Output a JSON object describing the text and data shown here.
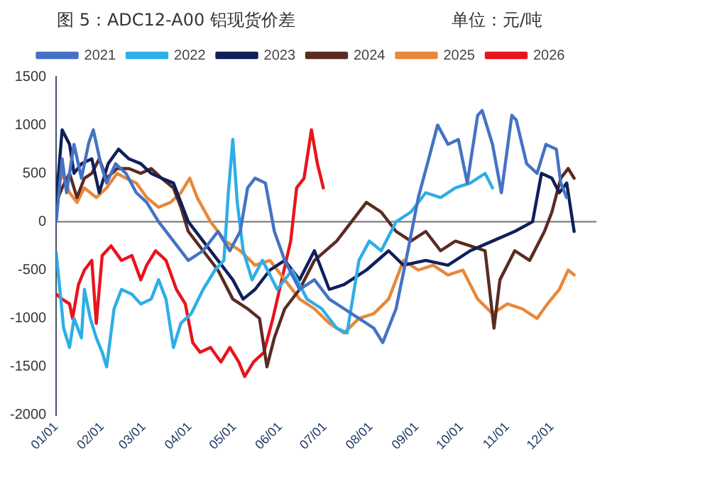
{
  "chart_data": {
    "type": "line",
    "title": "图 5：ADC12-A00 铝现货价差",
    "ylabel": "单位：元/吨",
    "legend": "top",
    "xlim": [
      "--01-01",
      "--12-31"
    ],
    "xticks": [
      {
        "value": "--01-01",
        "label": "01/01"
      },
      {
        "value": "--02-01",
        "label": "02/01"
      },
      {
        "value": "--03-01",
        "label": "03/01"
      },
      {
        "value": "--04-01",
        "label": "04/01"
      },
      {
        "value": "--05-01",
        "label": "05/01"
      },
      {
        "value": "--06-01",
        "label": "06/01"
      },
      {
        "value": "--07-01",
        "label": "07/01"
      },
      {
        "value": "--08-01",
        "label": "08/01"
      },
      {
        "value": "--09-01",
        "label": "09/01"
      },
      {
        "value": "--10-01",
        "label": "10/01"
      },
      {
        "value": "--11-01",
        "label": "11/01"
      },
      {
        "value": "--12-01",
        "label": "12/01"
      }
    ],
    "ylim": [
      -2000,
      1500
    ],
    "yticks": [
      -2000,
      -1500,
      -1000,
      -500,
      0,
      500,
      1000,
      1500
    ],
    "ref_lines": [
      {
        "axis": "y",
        "value": 0,
        "color": "#7f7f7f"
      }
    ],
    "series": [
      {
        "name": "2021",
        "color": "#4472c4",
        "x": [
          "--01-01",
          "--01-05",
          "--01-08",
          "--01-13",
          "--01-18",
          "--01-23",
          "--01-26",
          "--01-31",
          "--02-04",
          "--02-10",
          "--02-17",
          "--02-24",
          "--03-03",
          "--03-11",
          "--03-21",
          "--03-31",
          "--04-10",
          "--04-20",
          "--04-28",
          "--05-05",
          "--05-10",
          "--05-15",
          "--05-22",
          "--05-28",
          "--06-04",
          "--06-14",
          "--06-24",
          "--07-04",
          "--07-14",
          "--07-24",
          "--08-03",
          "--08-09",
          "--08-18",
          "--08-26",
          "--09-02",
          "--09-09",
          "--09-15",
          "--09-22",
          "--09-29",
          "--10-05",
          "--10-12",
          "--10-15",
          "--10-22",
          "--10-28",
          "--11-04",
          "--11-07",
          "--11-14",
          "--11-21",
          "--11-27",
          "--12-04",
          "--12-07",
          "--12-11"
        ],
        "values": [
          0,
          650,
          300,
          800,
          450,
          820,
          950,
          600,
          400,
          600,
          500,
          300,
          200,
          0,
          -200,
          -400,
          -300,
          -100,
          -300,
          -100,
          350,
          450,
          400,
          -100,
          -400,
          -700,
          -600,
          -800,
          -900,
          -1000,
          -1100,
          -1250,
          -900,
          -300,
          250,
          650,
          1000,
          800,
          850,
          400,
          1100,
          1150,
          800,
          300,
          1100,
          1050,
          600,
          500,
          800,
          750,
          400,
          250
        ]
      },
      {
        "name": "2022",
        "color": "#2eaee6",
        "x": [
          "--01-01",
          "--01-06",
          "--01-10",
          "--01-13",
          "--01-18",
          "--01-20",
          "--01-24",
          "--01-28",
          "--02-01",
          "--02-04",
          "--02-09",
          "--02-14",
          "--02-21",
          "--02-27",
          "--03-06",
          "--03-11",
          "--03-16",
          "--03-21",
          "--03-26",
          "--04-02",
          "--04-10",
          "--04-18",
          "--04-24",
          "--04-27",
          "--04-30",
          "--05-03",
          "--05-07",
          "--05-13",
          "--05-20",
          "--05-30",
          "--06-09",
          "--06-19",
          "--06-29",
          "--07-09",
          "--07-16",
          "--07-24",
          "--07-31",
          "--08-08",
          "--08-18",
          "--08-28",
          "--09-07",
          "--09-17",
          "--09-27",
          "--10-07",
          "--10-17",
          "--10-22"
        ],
        "values": [
          -320,
          -1100,
          -1300,
          -1000,
          -1200,
          -700,
          -1000,
          -1200,
          -1350,
          -1500,
          -900,
          -700,
          -750,
          -850,
          -800,
          -600,
          -800,
          -1300,
          -1050,
          -950,
          -700,
          -500,
          -400,
          300,
          850,
          200,
          -300,
          -600,
          -400,
          -700,
          -500,
          -800,
          -900,
          -1100,
          -1150,
          -400,
          -200,
          -300,
          0,
          100,
          300,
          250,
          350,
          400,
          500,
          350
        ]
      },
      {
        "name": "2023",
        "color": "#0f1f5a",
        "x": [
          "--01-01",
          "--01-05",
          "--01-10",
          "--01-13",
          "--01-18",
          "--01-25",
          "--01-30",
          "--02-05",
          "--02-12",
          "--02-19",
          "--02-27",
          "--03-06",
          "--03-13",
          "--03-21",
          "--03-26",
          "--03-31",
          "--04-10",
          "--04-20",
          "--04-30",
          "--05-07",
          "--05-15",
          "--05-25",
          "--06-04",
          "--06-14",
          "--06-24",
          "--07-04",
          "--07-14",
          "--07-29",
          "--08-13",
          "--08-23",
          "--09-07",
          "--09-22",
          "--10-07",
          "--10-22",
          "--11-06",
          "--11-18",
          "--11-24",
          "--12-01",
          "--12-06",
          "--12-11",
          "--12-16"
        ],
        "values": [
          200,
          950,
          800,
          500,
          600,
          650,
          300,
          600,
          750,
          650,
          600,
          500,
          450,
          400,
          200,
          0,
          -200,
          -400,
          -600,
          -800,
          -700,
          -500,
          -400,
          -600,
          -300,
          -700,
          -650,
          -500,
          -300,
          -450,
          -400,
          -450,
          -300,
          -200,
          -100,
          0,
          500,
          450,
          300,
          400,
          -100
        ]
      },
      {
        "name": "2024",
        "color": "#5b2b23",
        "x": [
          "--01-01",
          "--01-05",
          "--01-10",
          "--01-15",
          "--01-20",
          "--01-25",
          "--01-30",
          "--02-04",
          "--02-11",
          "--02-19",
          "--02-27",
          "--03-06",
          "--03-13",
          "--03-21",
          "--03-26",
          "--03-31",
          "--04-10",
          "--04-20",
          "--04-30",
          "--05-10",
          "--05-18",
          "--05-23",
          "--05-28",
          "--06-04",
          "--06-14",
          "--06-24",
          "--07-09",
          "--07-19",
          "--07-29",
          "--08-08",
          "--08-18",
          "--08-28",
          "--09-07",
          "--09-17",
          "--09-27",
          "--10-07",
          "--10-17",
          "--10-23",
          "--10-27",
          "--11-06",
          "--11-16",
          "--11-26",
          "--12-01",
          "--12-07",
          "--12-12",
          "--12-16"
        ],
        "values": [
          200,
          350,
          500,
          250,
          450,
          500,
          650,
          450,
          550,
          550,
          500,
          550,
          450,
          350,
          150,
          -100,
          -300,
          -500,
          -800,
          -900,
          -1000,
          -1500,
          -1200,
          -900,
          -700,
          -400,
          -200,
          0,
          200,
          100,
          -100,
          -200,
          -100,
          -300,
          -200,
          -250,
          -300,
          -1100,
          -600,
          -300,
          -400,
          -100,
          100,
          450,
          550,
          450
        ]
      },
      {
        "name": "2025",
        "color": "#e8883a",
        "x": [
          "--01-01",
          "--01-05",
          "--01-10",
          "--01-15",
          "--01-20",
          "--01-28",
          "--02-04",
          "--02-11",
          "--02-17",
          "--02-24",
          "--03-03",
          "--03-11",
          "--03-19",
          "--03-26",
          "--04-01",
          "--04-06",
          "--04-15",
          "--04-25",
          "--05-05",
          "--05-15",
          "--05-25",
          "--06-04",
          "--06-14",
          "--06-24",
          "--07-04",
          "--07-14",
          "--07-24",
          "--08-03",
          "--08-13",
          "--08-23",
          "--09-02",
          "--09-12",
          "--09-22",
          "--10-02",
          "--10-12",
          "--10-22",
          "--11-01",
          "--11-11",
          "--11-21",
          "--11-28",
          "--12-06",
          "--12-12",
          "--12-16"
        ],
        "values": [
          300,
          500,
          300,
          200,
          350,
          250,
          350,
          500,
          450,
          400,
          250,
          150,
          200,
          300,
          450,
          250,
          0,
          -200,
          -300,
          -450,
          -400,
          -600,
          -800,
          -900,
          -1050,
          -1150,
          -1000,
          -950,
          -800,
          -400,
          -500,
          -450,
          -550,
          -500,
          -800,
          -950,
          -850,
          -900,
          -1000,
          -850,
          -700,
          -500,
          -550
        ]
      },
      {
        "name": "2026",
        "color": "#e8141c",
        "x": [
          "--01-01",
          "--01-05",
          "--01-10",
          "--01-12",
          "--01-16",
          "--01-20",
          "--01-25",
          "--01-28",
          "--02-01",
          "--02-07",
          "--02-14",
          "--02-21",
          "--02-27",
          "--03-03",
          "--03-09",
          "--03-16",
          "--03-23",
          "--03-29",
          "--04-03",
          "--04-08",
          "--04-15",
          "--04-22",
          "--04-28",
          "--05-04",
          "--05-08",
          "--05-14",
          "--05-21",
          "--05-27",
          "--06-02",
          "--06-08",
          "--06-12",
          "--06-17",
          "--06-22",
          "--06-26",
          "--06-30"
        ],
        "values": [
          -750,
          -800,
          -850,
          -1000,
          -650,
          -500,
          -400,
          -1050,
          -350,
          -250,
          -400,
          -350,
          -600,
          -450,
          -300,
          -400,
          -700,
          -850,
          -1250,
          -1350,
          -1300,
          -1450,
          -1300,
          -1450,
          -1600,
          -1450,
          -1350,
          -1000,
          -600,
          -200,
          350,
          450,
          950,
          600,
          350
        ]
      }
    ]
  }
}
